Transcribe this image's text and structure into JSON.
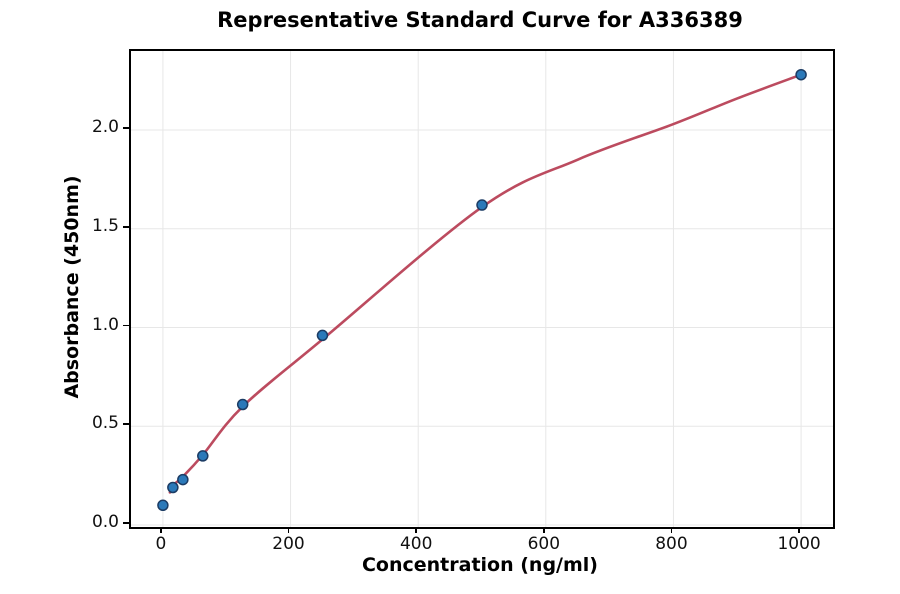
{
  "chart_data": {
    "type": "scatter",
    "title": "Representative Standard Curve for A336389",
    "xlabel": "Concentration (ng/ml)",
    "ylabel": "Absorbance (450nm)",
    "xlim": [
      -50,
      1050
    ],
    "ylim": [
      -0.01,
      2.4
    ],
    "x_ticks": [
      0,
      200,
      400,
      600,
      800,
      1000
    ],
    "y_ticks": [
      0,
      0.5,
      1,
      1.5,
      2
    ],
    "y_tick_decimals": 1,
    "grid": true,
    "grid_color": "#e7e7e7",
    "spine_color": "#000000",
    "text_color": "#111111",
    "series": [
      {
        "name": "standard-points",
        "type": "scatter",
        "x": [
          0,
          15.6,
          31.25,
          62.5,
          125,
          250,
          500,
          1000
        ],
        "y": [
          0.1,
          0.19,
          0.23,
          0.35,
          0.61,
          0.96,
          1.62,
          2.28
        ],
        "marker_fill": "#2b79b9",
        "marker_edge": "#1c3c64",
        "marker_radius": 5
      },
      {
        "name": "4pl-fit-curve",
        "type": "line",
        "x": [
          11,
          15.6,
          31.25,
          62.5,
          125,
          250,
          500,
          650,
          800,
          900,
          1000
        ],
        "y": [
          0.165,
          0.2,
          0.245,
          0.355,
          0.6,
          0.94,
          1.61,
          1.85,
          2.03,
          2.16,
          2.28
        ],
        "color": "#bc4b5f",
        "width": 2.6
      }
    ]
  }
}
